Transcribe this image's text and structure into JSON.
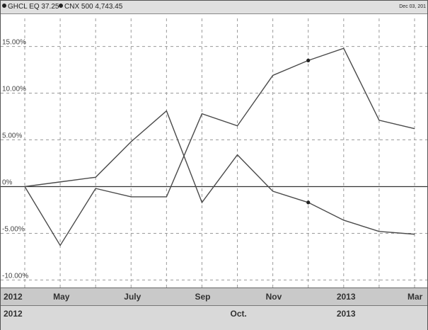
{
  "legend": [
    {
      "symbol": "dot-icon",
      "label": "GHCL EQ 37.25"
    },
    {
      "symbol": "dot-icon",
      "label": "CNX 500 4,743.45"
    }
  ],
  "date_text": "Dec 03, 201",
  "colors": {
    "line": "#4a4a4a",
    "grid": "#9a9a9a",
    "axis_band": "#c9c9c9",
    "lower_band": "#d9d9d9"
  },
  "chart_data": {
    "type": "line",
    "x": [
      0,
      1,
      2,
      3,
      4,
      5,
      6,
      7,
      8,
      9,
      10,
      11
    ],
    "y_ticks": [
      "15.00%",
      "10.00%",
      "5.00%",
      "0%",
      "-5.00%",
      "-10.00%"
    ],
    "y_tick_values": [
      15,
      10,
      5,
      0,
      -5,
      -10
    ],
    "ylim": [
      -10.5,
      18
    ],
    "grid": true,
    "x_tick_labels": [
      {
        "label": "2012",
        "x": 0
      },
      {
        "label": "May",
        "x": 1
      },
      {
        "label": "July",
        "x": 3
      },
      {
        "label": "Sep",
        "x": 5
      },
      {
        "label": "Nov",
        "x": 7
      },
      {
        "label": "2013",
        "x": 9
      },
      {
        "label": "Mar",
        "x": 11
      }
    ],
    "x_tick_labels_lower": [
      {
        "label": "2012",
        "x": 0
      },
      {
        "label": "Oct.",
        "x": 6
      },
      {
        "label": "2013",
        "x": 9
      }
    ],
    "series": [
      {
        "values": [
          0,
          0.5,
          1.0,
          4.8,
          8.1,
          -1.7,
          3.4,
          -0.5,
          -1.7,
          -3.6,
          -4.8,
          -5.1
        ],
        "marker_index": 8
      },
      {
        "values": [
          0,
          -6.3,
          -0.2,
          -1.1,
          -1.1,
          7.8,
          6.5,
          11.9,
          13.5,
          14.8,
          7.1,
          6.2
        ],
        "marker_index": 8
      }
    ]
  }
}
